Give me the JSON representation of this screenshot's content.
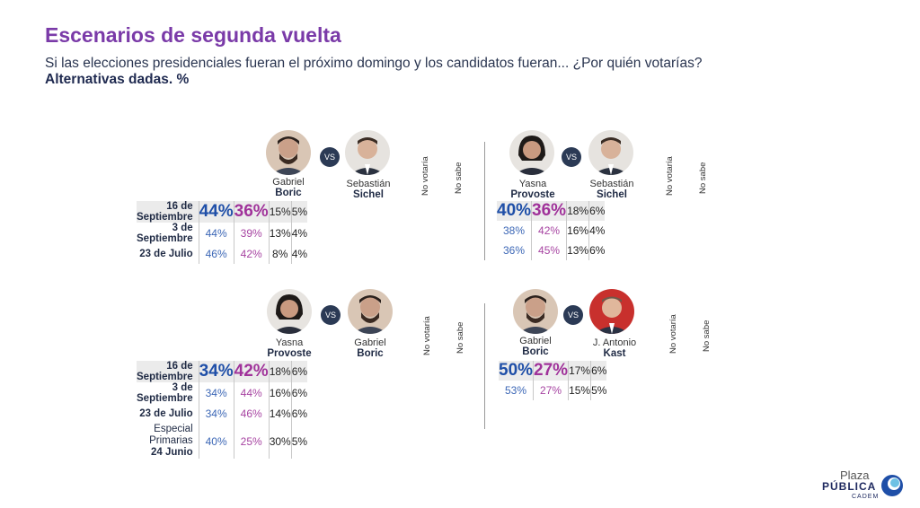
{
  "header": {
    "title": "Escenarios de segunda vuelta",
    "subtitle": "Si las elecciones presidenciales fueran el próximo domingo y los candidatos fueran... ¿Por quién votarías?",
    "subtitle2": "Alternativas dadas. %"
  },
  "col_no_votaria": "No votaría",
  "col_no_sabe": "No sabe",
  "vs_label": "VS",
  "panels": [
    {
      "a_first": "Gabriel",
      "a_last": "Boric",
      "b_first": "Sebastián",
      "b_last": "Sichel",
      "rows": [
        {
          "label": "16 de Septiembre",
          "a": "44%",
          "b": "36%",
          "nv": "15%",
          "ns": "5%"
        },
        {
          "label": "3 de Septiembre",
          "a": "44%",
          "b": "39%",
          "nv": "13%",
          "ns": "4%"
        },
        {
          "label": "23 de Julio",
          "a": "46%",
          "b": "42%",
          "nv": "8%",
          "ns": "4%"
        }
      ]
    },
    {
      "a_first": "Yasna",
      "a_last": "Provoste",
      "b_first": "Sebastián",
      "b_last": "Sichel",
      "rows": [
        {
          "a": "40%",
          "b": "36%",
          "nv": "18%",
          "ns": "6%"
        },
        {
          "a": "38%",
          "b": "42%",
          "nv": "16%",
          "ns": "4%"
        },
        {
          "a": "36%",
          "b": "45%",
          "nv": "13%",
          "ns": "6%"
        }
      ]
    },
    {
      "a_first": "Yasna",
      "a_last": "Provoste",
      "b_first": "Gabriel",
      "b_last": "Boric",
      "rows": [
        {
          "label": "16 de Septiembre",
          "a": "34%",
          "b": "42%",
          "nv": "18%",
          "ns": "6%"
        },
        {
          "label": "3 de Septiembre",
          "a": "34%",
          "b": "44%",
          "nv": "16%",
          "ns": "6%"
        },
        {
          "label": "23 de Julio",
          "a": "34%",
          "b": "46%",
          "nv": "14%",
          "ns": "6%"
        },
        {
          "label_line1": "Especial Primarias",
          "label_line2": "24 Junio",
          "a": "40%",
          "b": "25%",
          "nv": "30%",
          "ns": "5%"
        }
      ]
    },
    {
      "a_first": "Gabriel",
      "a_last": "Boric",
      "b_first": "J. Antonio",
      "b_last": "Kast",
      "rows": [
        {
          "a": "50%",
          "b": "27%",
          "nv": "17%",
          "ns": "6%"
        },
        {
          "a": "53%",
          "b": "27%",
          "nv": "15%",
          "ns": "5%"
        }
      ]
    }
  ],
  "logo": {
    "line1": "Plaza",
    "line2": "PÚBLICA",
    "line3": "CADEM",
    "accent": "#1f4fa8"
  },
  "colors": {
    "title": "#7a3aa8",
    "candidate_a": "#1f4fa8",
    "candidate_b": "#a0329a",
    "highlight_row": "#ebebeb"
  }
}
